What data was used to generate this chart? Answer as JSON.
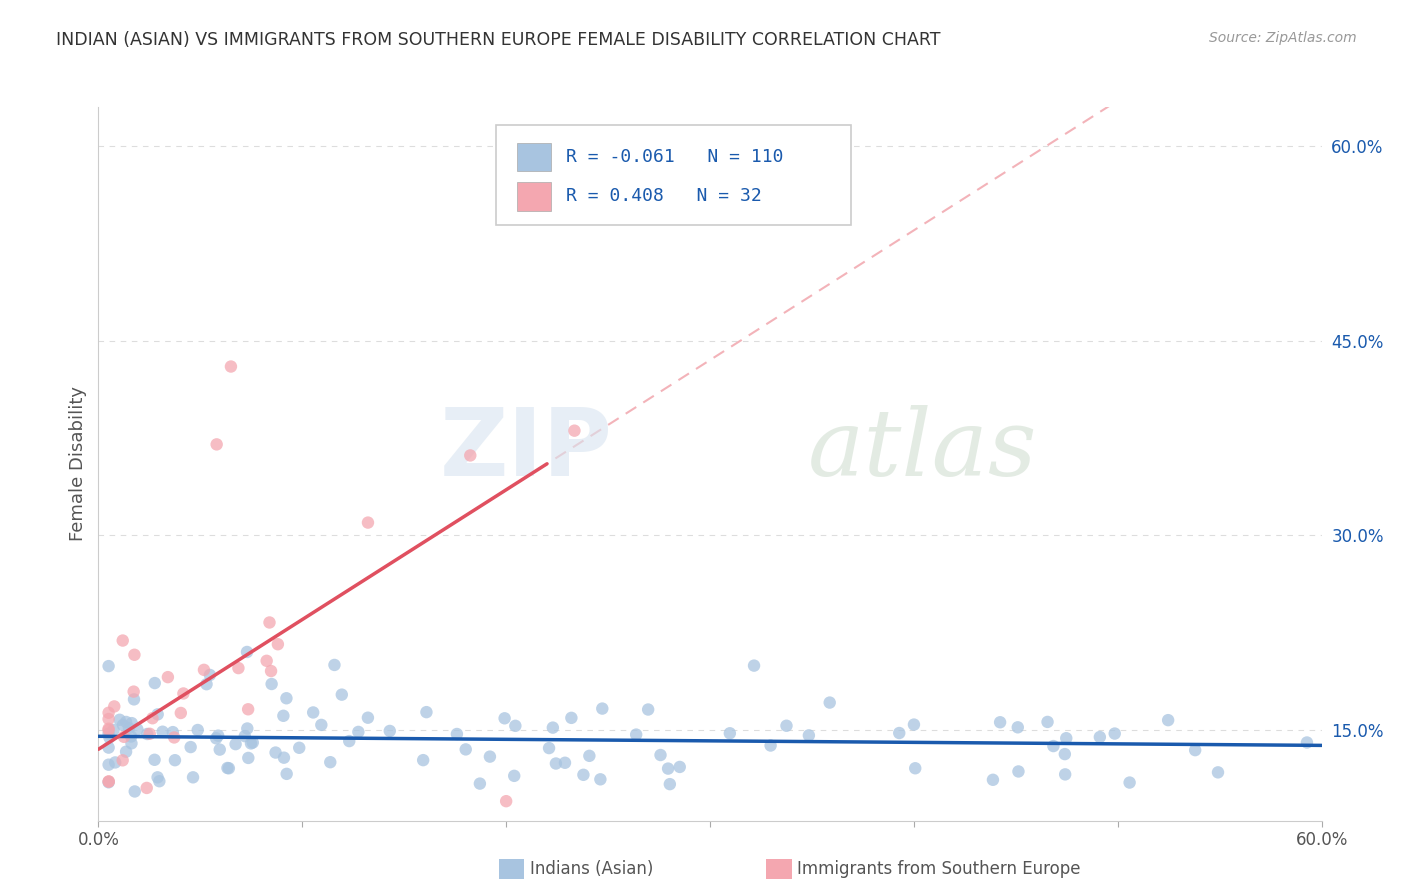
{
  "title": "INDIAN (ASIAN) VS IMMIGRANTS FROM SOUTHERN EUROPE FEMALE DISABILITY CORRELATION CHART",
  "source": "Source: ZipAtlas.com",
  "ylabel": "Female Disability",
  "legend_label1": "Indians (Asian)",
  "legend_label2": "Immigrants from Southern Europe",
  "r1": -0.061,
  "n1": 110,
  "r2": 0.408,
  "n2": 32,
  "color1": "#a8c4e0",
  "color2": "#f4a7b0",
  "trendline1_color": "#1a5aad",
  "trendline2_color": "#e05060",
  "right_axis_color": "#1a5aad",
  "xlim": [
    0.0,
    0.6
  ],
  "ylim": [
    0.08,
    0.63
  ],
  "right_yticks": [
    0.15,
    0.3,
    0.45,
    0.6
  ],
  "right_yticklabels": [
    "15.0%",
    "30.0%",
    "45.0%",
    "60.0%"
  ],
  "watermark_zip": "ZIP",
  "watermark_atlas": "atlas",
  "background_color": "#ffffff",
  "dashed_line_color": "#dddddd",
  "dashed_line_y": [
    0.6,
    0.45,
    0.3,
    0.15
  ]
}
